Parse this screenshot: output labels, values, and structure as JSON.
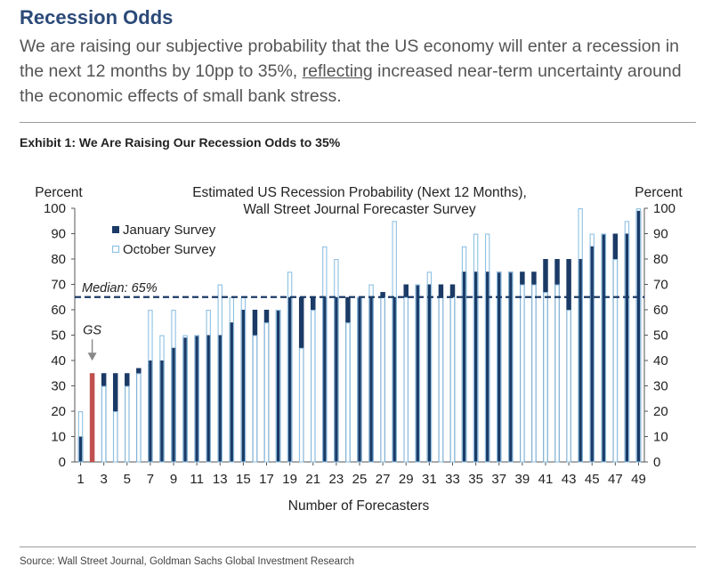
{
  "header": {
    "title": "Recession Odds",
    "intro_before": "We are raising our subjective probability that the US economy will enter a recession in the next 12 months by 10pp to 35%, ",
    "intro_link": "reflecting",
    "intro_after": " increased near-term uncertainty around the economic effects of small bank stress."
  },
  "exhibit_title": "Exhibit 1: We Are Raising Our Recession Odds to 35%",
  "source": "Source: Wall Street Journal, Goldman Sachs Global Investment Research",
  "colors": {
    "january": "#1b3a66",
    "october_edge": "#8fc1e3",
    "gs": "#c0504d",
    "text": "#222222"
  },
  "chart_data": {
    "type": "bar",
    "title": "Estimated US Recession Probability (Next 12 Months),",
    "subtitle": "Wall Street Journal Forecaster Survey",
    "xlabel": "Number of Forecasters",
    "ylabel_left": "Percent",
    "ylabel_right": "Percent",
    "ylim": [
      0,
      100
    ],
    "yticks": [
      0,
      10,
      20,
      30,
      40,
      50,
      60,
      70,
      80,
      90,
      100
    ],
    "xtick_labels": [
      "1",
      "3",
      "5",
      "7",
      "9",
      "11",
      "13",
      "15",
      "17",
      "19",
      "21",
      "23",
      "25",
      "27",
      "29",
      "31",
      "33",
      "35",
      "37",
      "39",
      "41",
      "43",
      "45",
      "47",
      "49"
    ],
    "categories": [
      1,
      2,
      3,
      4,
      5,
      6,
      7,
      8,
      9,
      10,
      11,
      12,
      13,
      14,
      15,
      16,
      17,
      18,
      19,
      20,
      21,
      22,
      23,
      24,
      25,
      26,
      27,
      28,
      29,
      30,
      31,
      32,
      33,
      34,
      35,
      36,
      37,
      38,
      39,
      40,
      41,
      42,
      43,
      44,
      45,
      46,
      47,
      48,
      49
    ],
    "series": [
      {
        "name": "January Survey",
        "values": [
          10,
          null,
          35,
          35,
          35,
          37,
          40,
          40,
          45,
          49,
          50,
          50,
          50,
          55,
          60,
          60,
          60,
          60,
          65,
          65,
          65,
          65,
          65,
          65,
          65,
          65,
          67,
          65,
          70,
          70,
          70,
          70,
          70,
          75,
          75,
          75,
          75,
          75,
          75,
          75,
          80,
          80,
          80,
          80,
          85,
          90,
          90,
          90,
          99
        ]
      },
      {
        "name": "October Survey",
        "values": [
          20,
          null,
          30,
          20,
          30,
          35,
          60,
          50,
          60,
          50,
          50,
          60,
          70,
          65,
          65,
          50,
          55,
          60,
          75,
          45,
          60,
          85,
          80,
          55,
          65,
          70,
          65,
          95,
          65,
          70,
          75,
          65,
          65,
          85,
          90,
          90,
          75,
          75,
          70,
          70,
          67,
          70,
          60,
          100,
          90,
          90,
          80,
          95,
          100
        ]
      }
    ],
    "gs_highlight": {
      "label": "GS",
      "index": 2,
      "value": 35
    },
    "median": {
      "label": "Median: 65%",
      "value": 65
    },
    "legend": {
      "position": "upper-left"
    }
  }
}
